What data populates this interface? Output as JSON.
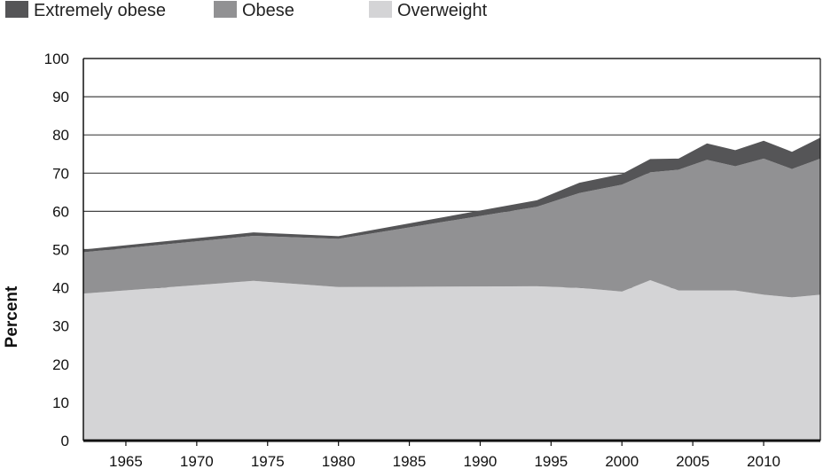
{
  "chart_data": {
    "type": "area",
    "stacked": true,
    "title": "",
    "xlabel": "",
    "ylabel": "Percent",
    "ylim": [
      0,
      100
    ],
    "xlim": [
      1962,
      2014
    ],
    "yticks": [
      0,
      10,
      20,
      30,
      40,
      50,
      60,
      70,
      80,
      90,
      100
    ],
    "xticks": [
      1965,
      1970,
      1975,
      1980,
      1985,
      1990,
      1995,
      2000,
      2005,
      2010
    ],
    "grid": "horizontal",
    "legend_position": "top-left",
    "x": [
      1962,
      1974,
      1980,
      1994,
      1997,
      2000,
      2002,
      2004,
      2006,
      2008,
      2010,
      2012,
      2014
    ],
    "series": [
      {
        "name": "Overweight",
        "color": "#d4d4d6",
        "values": [
          38.5,
          41.8,
          40.2,
          40.4,
          40.0,
          39.0,
          42.0,
          39.3,
          39.3,
          39.3,
          38.2,
          37.5,
          38.2
        ]
      },
      {
        "name": "Obese",
        "color": "#919193",
        "values": [
          10.8,
          11.8,
          12.6,
          20.8,
          24.8,
          28.0,
          28.2,
          31.6,
          34.2,
          32.5,
          35.6,
          33.6,
          35.6
        ]
      },
      {
        "name": "Extremely obese",
        "color": "#555557",
        "values": [
          0.7,
          0.9,
          0.7,
          1.7,
          2.7,
          2.8,
          3.5,
          2.9,
          4.3,
          4.2,
          4.7,
          4.5,
          5.5
        ]
      }
    ],
    "legend": [
      "Extremely obese",
      "Obese",
      "Overweight"
    ]
  }
}
